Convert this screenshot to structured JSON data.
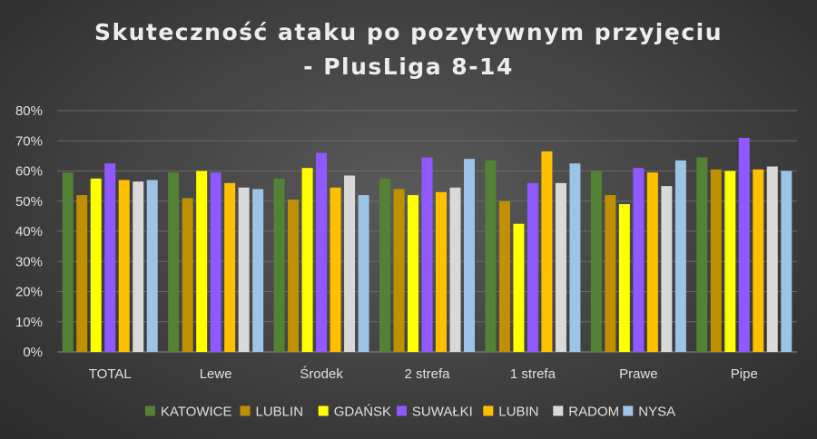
{
  "chart_data": {
    "type": "bar",
    "title_lines": [
      "Skuteczność ataku po pozytywnym przyjęciu",
      "- PlusLiga 8-14"
    ],
    "categories": [
      "TOTAL",
      "Lewe",
      "Środek",
      "2 strefa",
      "1 strefa",
      "Prawe",
      "Pipe"
    ],
    "ylim": [
      0,
      0.8
    ],
    "yticks": [
      "0%",
      "10%",
      "20%",
      "30%",
      "40%",
      "50%",
      "60%",
      "70%",
      "80%"
    ],
    "grid": true,
    "legend_position": "bottom",
    "series": [
      {
        "name": "KATOWICE",
        "color": "#548235",
        "values": [
          0.595,
          0.595,
          0.575,
          0.575,
          0.635,
          0.6,
          0.645
        ]
      },
      {
        "name": "LUBLIN",
        "color": "#BF9000",
        "values": [
          0.52,
          0.51,
          0.505,
          0.54,
          0.5,
          0.52,
          0.605
        ]
      },
      {
        "name": "GDAŃSK",
        "color": "#FFFF00",
        "values": [
          0.575,
          0.6,
          0.61,
          0.52,
          0.425,
          0.49,
          0.6
        ]
      },
      {
        "name": "SUWAŁKI",
        "color": "#8F59FF",
        "values": [
          0.625,
          0.595,
          0.66,
          0.645,
          0.56,
          0.61,
          0.71
        ]
      },
      {
        "name": "LUBIN",
        "color": "#FFC000",
        "values": [
          0.57,
          0.56,
          0.545,
          0.53,
          0.665,
          0.595,
          0.605
        ]
      },
      {
        "name": "RADOM",
        "color": "#D9D9D9",
        "values": [
          0.565,
          0.545,
          0.585,
          0.545,
          0.56,
          0.55,
          0.615
        ]
      },
      {
        "name": "NYSA",
        "color": "#9DC3E6",
        "values": [
          0.57,
          0.54,
          0.52,
          0.64,
          0.625,
          0.635,
          0.6
        ]
      }
    ]
  }
}
